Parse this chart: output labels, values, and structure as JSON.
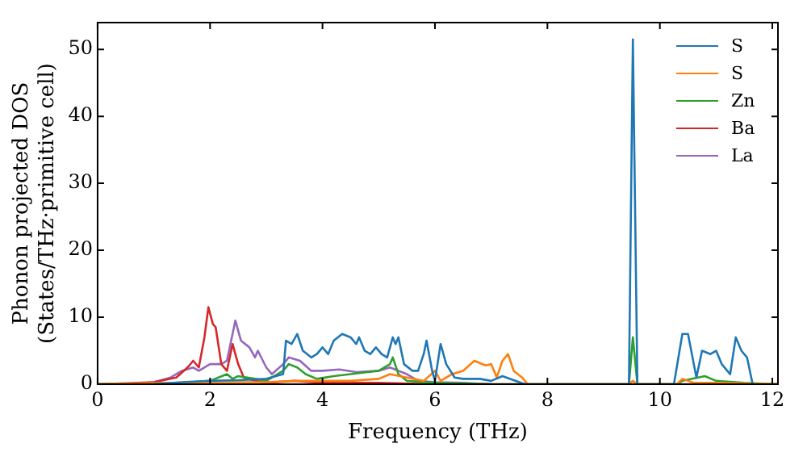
{
  "chart_data": {
    "type": "line",
    "xlabel": "Frequency (THz)",
    "ylabel": "Phonon projected DOS\n(States/THz·primitive cell)",
    "xlim": [
      0,
      12.1
    ],
    "ylim": [
      0,
      54
    ],
    "xticks": [
      0,
      2,
      4,
      6,
      8,
      10,
      12
    ],
    "yticks": [
      0,
      10,
      20,
      30,
      40,
      50
    ],
    "grid": false,
    "legend": "top right",
    "marker": "none",
    "line_style": "solid",
    "series": [
      {
        "name": "S",
        "color": "#1f77b4",
        "x": [
          1,
          1.5,
          2,
          2.5,
          3,
          3.3,
          3.35,
          3.45,
          3.55,
          3.65,
          3.8,
          3.9,
          4.0,
          4.1,
          4.2,
          4.35,
          4.5,
          4.6,
          4.65,
          4.75,
          4.85,
          4.95,
          5.05,
          5.15,
          5.25,
          5.3,
          5.35,
          5.45,
          5.6,
          5.7,
          5.8,
          5.85,
          5.95,
          6.0,
          6.1,
          6.2,
          6.35,
          6.5,
          6.8,
          7.0,
          7.2,
          7.4,
          7.6,
          9.45,
          9.52,
          9.6,
          10.25,
          10.4,
          10.5,
          10.65,
          10.75,
          10.9,
          11.0,
          11.1,
          11.25,
          11.35,
          11.45,
          11.55,
          11.65
        ],
        "values": [
          0,
          0.3,
          0.5,
          0.6,
          0.8,
          1.5,
          6.5,
          6,
          7.5,
          5,
          4,
          4.5,
          5.5,
          4.5,
          6.5,
          7.5,
          7,
          6,
          7,
          5,
          4.5,
          5.5,
          4.5,
          4,
          7,
          6,
          7,
          3,
          2,
          2,
          4.5,
          6.5,
          2,
          0.5,
          6,
          3,
          1,
          0.8,
          0.8,
          0.5,
          1.2,
          0.6,
          0,
          0,
          51.5,
          0,
          0,
          7.5,
          7.5,
          1,
          5,
          4.5,
          5,
          3,
          1.5,
          7,
          5,
          4,
          0
        ]
      },
      {
        "name": "S",
        "color": "#ff7f0e",
        "x": [
          0,
          2,
          3,
          3.5,
          4.5,
          5,
          5.2,
          5.5,
          5.8,
          6,
          6.1,
          6.3,
          6.5,
          6.7,
          6.9,
          7.0,
          7.1,
          7.2,
          7.3,
          7.4,
          7.55,
          7.65,
          9.45,
          9.52,
          9.6,
          10.3,
          10.4,
          10.6,
          11,
          12.1
        ],
        "values": [
          0,
          0.3,
          0.3,
          0.5,
          0.5,
          0.8,
          1.5,
          1,
          0.5,
          2,
          0.5,
          1.5,
          2,
          3.5,
          2.8,
          3.0,
          1,
          3.5,
          4.5,
          2,
          1,
          0,
          0,
          0.5,
          0,
          0,
          0.8,
          0.2,
          0.2,
          0
        ]
      },
      {
        "name": "Zn",
        "color": "#2ca02c",
        "x": [
          0,
          1.5,
          2,
          2.3,
          2.4,
          2.5,
          2.8,
          3,
          3.3,
          3.4,
          3.55,
          3.7,
          3.9,
          4.2,
          4.5,
          4.8,
          5.0,
          5.2,
          5.25,
          5.35,
          5.5,
          6,
          7,
          9.45,
          9.52,
          9.6,
          10.3,
          10.4,
          10.8,
          11,
          11.5,
          12.1
        ],
        "values": [
          0,
          0.2,
          0.5,
          1.5,
          0.8,
          1.2,
          0.8,
          0.5,
          2,
          3,
          2.5,
          1.5,
          0.8,
          1.2,
          1.5,
          1.8,
          2,
          3,
          4,
          1.5,
          0.5,
          0.2,
          0,
          0,
          7,
          0,
          0,
          0.5,
          1.2,
          0.5,
          0.2,
          0
        ]
      },
      {
        "name": "Ba",
        "color": "#d62728",
        "x": [
          0,
          1,
          1.4,
          1.6,
          1.7,
          1.8,
          1.9,
          1.97,
          2.05,
          2.1,
          2.2,
          2.3,
          2.4,
          2.5,
          2.6,
          2.8,
          3,
          3.5,
          4,
          5,
          6,
          12.1
        ],
        "values": [
          0,
          0.3,
          1,
          2.5,
          3.5,
          2.5,
          7,
          11.5,
          9,
          8.5,
          3,
          2,
          6,
          3,
          1,
          0.5,
          0.2,
          0.5,
          0.2,
          0.2,
          0,
          0
        ]
      },
      {
        "name": "La",
        "color": "#9467bd",
        "x": [
          0,
          0.5,
          1,
          1.3,
          1.5,
          1.7,
          1.8,
          2,
          2.2,
          2.3,
          2.45,
          2.55,
          2.7,
          2.8,
          2.85,
          3,
          3.1,
          3.3,
          3.4,
          3.6,
          3.8,
          4,
          4.3,
          4.6,
          5,
          5.2,
          5.35,
          5.5,
          5.7,
          6,
          6.5,
          7
        ],
        "values": [
          0,
          0,
          0.3,
          1,
          2,
          2.5,
          2,
          3,
          3,
          3.5,
          9.5,
          6.5,
          5.5,
          4,
          5,
          2.5,
          1.5,
          3,
          4,
          3.5,
          2,
          2,
          2.2,
          1.8,
          2,
          2.5,
          2,
          1.5,
          0.5,
          0.3,
          0.2,
          0
        ]
      }
    ]
  }
}
